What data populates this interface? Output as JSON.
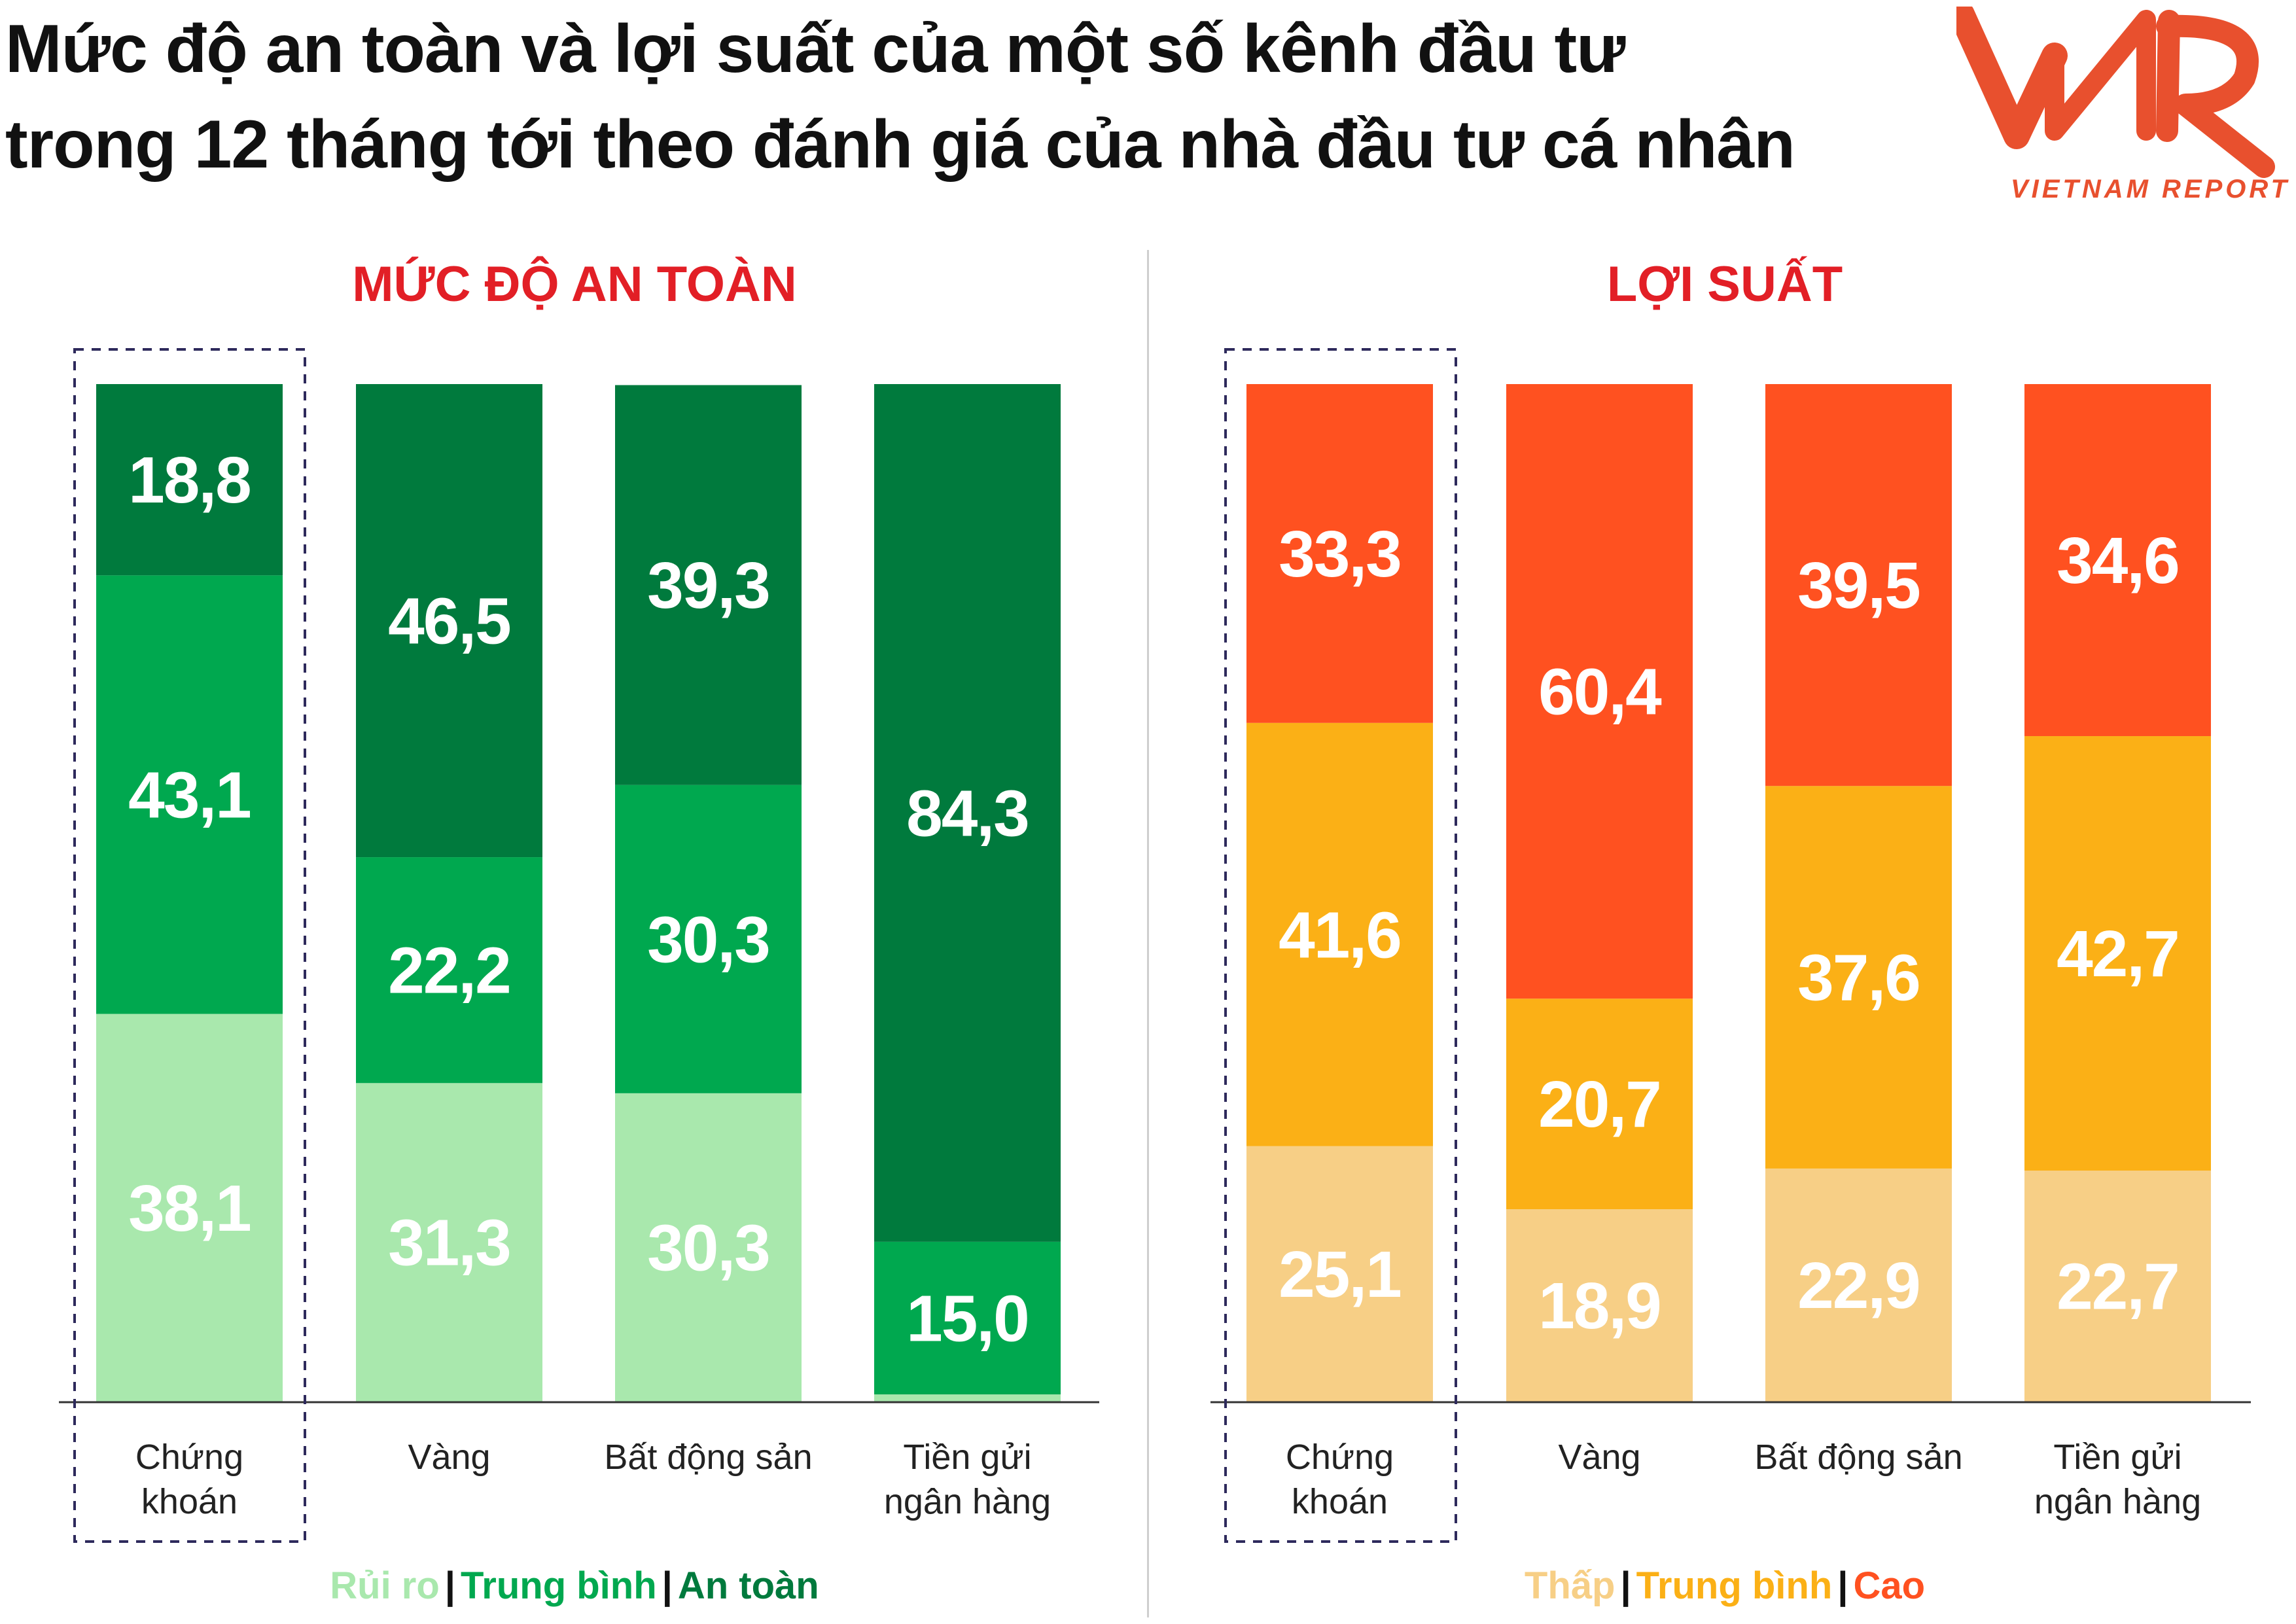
{
  "title": {
    "line1": "Mức độ an toàn và lợi suất của một số kênh đầu tư",
    "line2": "trong 12 tháng tới theo đánh giá của nhà đầu tư cá nhân"
  },
  "logo": {
    "mark": "VNR",
    "tagline": "VIETNAM REPORT",
    "color": "#e8502e"
  },
  "panels": {
    "left_title": "MỨC ĐỘ AN TOÀN",
    "right_title": "LỢI SUẤT"
  },
  "legends": {
    "left": [
      {
        "label": "Rủi ro",
        "color": "#a9e8ad"
      },
      {
        "label": "Trung bình",
        "color": "#00a84f"
      },
      {
        "label": "An toàn",
        "color": "#007a3d"
      }
    ],
    "right": [
      {
        "label": "Thấp",
        "color": "#f7cf86"
      },
      {
        "label": "Trung bình",
        "color": "#fbb016"
      },
      {
        "label": "Cao",
        "color": "#ff5120"
      }
    ]
  },
  "chart_data": [
    {
      "type": "bar",
      "stacked": true,
      "title": "MỨC ĐỘ AN TOÀN",
      "categories": [
        [
          "Chứng",
          "khoán"
        ],
        [
          "Vàng"
        ],
        [
          "Bất động sản"
        ],
        [
          "Tiền gửi",
          "ngân hàng"
        ]
      ],
      "highlighted_category": 0,
      "ylim": [
        0,
        100
      ],
      "series": [
        {
          "name": "Rủi ro",
          "color": "#a9e8ad",
          "values": [
            38.1,
            31.3,
            30.3,
            0.7
          ],
          "labels": [
            "38,1",
            "31,3",
            "30,3",
            ""
          ]
        },
        {
          "name": "Trung bình",
          "color": "#00a84f",
          "values": [
            43.1,
            22.2,
            30.3,
            15.0
          ],
          "labels": [
            "43,1",
            "22,2",
            "30,3",
            "15,0"
          ]
        },
        {
          "name": "An toàn",
          "color": "#007a3d",
          "values": [
            18.8,
            46.5,
            39.3,
            84.3
          ],
          "labels": [
            "18,8",
            "46,5",
            "39,3",
            "84,3"
          ]
        }
      ]
    },
    {
      "type": "bar",
      "stacked": true,
      "title": "LỢI SUẤT",
      "categories": [
        [
          "Chứng",
          "khoán"
        ],
        [
          "Vàng"
        ],
        [
          "Bất động sản"
        ],
        [
          "Tiền gửi",
          "ngân hàng"
        ]
      ],
      "highlighted_category": 0,
      "ylim": [
        0,
        100
      ],
      "series": [
        {
          "name": "Thấp",
          "color": "#f7cf86",
          "values": [
            25.1,
            18.9,
            22.9,
            22.7
          ],
          "labels": [
            "25,1",
            "18,9",
            "22,9",
            "22,7"
          ]
        },
        {
          "name": "Trung bình",
          "color": "#fbb016",
          "values": [
            41.6,
            20.7,
            37.6,
            42.7
          ],
          "labels": [
            "41,6",
            "20,7",
            "37,6",
            "42,7"
          ]
        },
        {
          "name": "Cao",
          "color": "#ff5120",
          "values": [
            33.3,
            60.4,
            39.5,
            34.6
          ],
          "labels": [
            "33,3",
            "60,4",
            "39,5",
            "34,6"
          ]
        }
      ]
    }
  ]
}
